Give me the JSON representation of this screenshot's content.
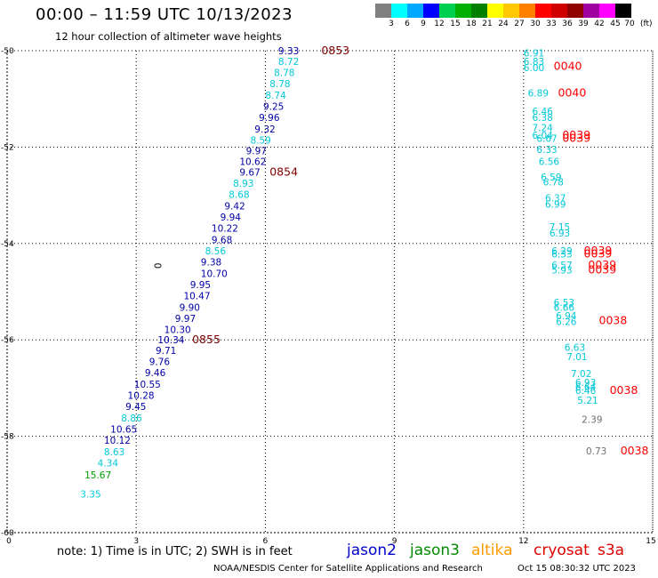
{
  "title": "00:00 – 11:59 UTC 10/13/2023",
  "subtitle": "12 hour collection of altimeter wave heights",
  "scale": {
    "unit": "(ft)",
    "labels": [
      "3",
      "6",
      "9",
      "12",
      "15",
      "18",
      "21",
      "24",
      "27",
      "30",
      "33",
      "36",
      "39",
      "42",
      "45",
      "70"
    ],
    "colors": [
      "#808080",
      "#00ffff",
      "#00a8ff",
      "#0000ff",
      "#00d050",
      "#00b000",
      "#008000",
      "#ffff00",
      "#ffc800",
      "#ff8000",
      "#ff0000",
      "#d00000",
      "#900000",
      "#a000a0",
      "#ff00ff",
      "#000000"
    ]
  },
  "note": "note: 1) Time is in UTC; 2) SWH is in feet",
  "satellites": [
    {
      "name": "jason2",
      "color": "#0000cc"
    },
    {
      "name": "jason3",
      "color": "#008c00"
    },
    {
      "name": "altika",
      "color": "#ff9900"
    },
    {
      "name": "cryosat",
      "color": "#dd0000"
    },
    {
      "name": "s3a",
      "color": "#dd0000"
    }
  ],
  "footer": "NOAA/NESDIS Center for Satellite Applications and Research",
  "footer_date": "Oct 15 08:30:32 UTC 2023",
  "chart_data": {
    "type": "scatter",
    "xlim": [
      0,
      15
    ],
    "ylim": [
      -60,
      -50
    ],
    "x_ticks": [
      "0",
      "3",
      "6",
      "9",
      "12",
      "15"
    ],
    "x_tick_values": [
      0,
      3,
      6,
      9,
      12,
      15
    ],
    "y_ticks": [
      "-50",
      "-52",
      "-54",
      "-56",
      "-58",
      "-60"
    ],
    "y_tick_values": [
      -50,
      -52,
      -54,
      -56,
      -58,
      -60
    ],
    "grid": true,
    "colors": {
      "gray": "#707070",
      "cyan": "#00c8d8",
      "blue": "#0000a8",
      "green": "#00a000",
      "red": "#ff0000",
      "darkred": "#800000",
      "black": "#000000"
    },
    "points": [
      {
        "x": 6.3,
        "y": -50.0,
        "label": "9.33",
        "color": "blue"
      },
      {
        "x": 7.3,
        "y": -50.0,
        "label": "0853",
        "color": "darkred"
      },
      {
        "x": 6.3,
        "y": -50.22,
        "label": "8.72",
        "color": "cyan"
      },
      {
        "x": 6.2,
        "y": -50.45,
        "label": "8.78",
        "color": "cyan"
      },
      {
        "x": 6.1,
        "y": -50.68,
        "label": "8.78",
        "color": "cyan"
      },
      {
        "x": 6.0,
        "y": -50.92,
        "label": "8.74",
        "color": "cyan"
      },
      {
        "x": 5.95,
        "y": -51.15,
        "label": "9.25",
        "color": "blue"
      },
      {
        "x": 5.85,
        "y": -51.38,
        "label": "9.96",
        "color": "blue"
      },
      {
        "x": 5.75,
        "y": -51.62,
        "label": "9.32",
        "color": "blue"
      },
      {
        "x": 5.65,
        "y": -51.85,
        "label": "8.59",
        "color": "cyan"
      },
      {
        "x": 5.55,
        "y": -52.08,
        "label": "9.97",
        "color": "blue"
      },
      {
        "x": 5.4,
        "y": -52.3,
        "label": "10.62",
        "color": "blue"
      },
      {
        "x": 5.4,
        "y": -52.52,
        "label": "9.67",
        "color": "blue"
      },
      {
        "x": 6.1,
        "y": -52.52,
        "label": "0854",
        "color": "darkred"
      },
      {
        "x": 5.25,
        "y": -52.75,
        "label": "8.93",
        "color": "cyan"
      },
      {
        "x": 5.15,
        "y": -52.98,
        "label": "8.68",
        "color": "cyan"
      },
      {
        "x": 5.05,
        "y": -53.22,
        "label": "9.42",
        "color": "blue"
      },
      {
        "x": 4.95,
        "y": -53.45,
        "label": "9.94",
        "color": "blue"
      },
      {
        "x": 4.75,
        "y": -53.68,
        "label": "10.22",
        "color": "blue"
      },
      {
        "x": 4.75,
        "y": -53.92,
        "label": "9.68",
        "color": "blue"
      },
      {
        "x": 4.6,
        "y": -54.15,
        "label": "8.56",
        "color": "cyan"
      },
      {
        "x": 3.5,
        "y": -54.4,
        "label": "0",
        "color": "black",
        "rotate": true
      },
      {
        "x": 4.5,
        "y": -54.38,
        "label": "9.38",
        "color": "blue"
      },
      {
        "x": 4.5,
        "y": -54.62,
        "label": "10.70",
        "color": "blue"
      },
      {
        "x": 4.25,
        "y": -54.85,
        "label": "9.95",
        "color": "blue"
      },
      {
        "x": 4.1,
        "y": -55.08,
        "label": "10.47",
        "color": "blue"
      },
      {
        "x": 4.0,
        "y": -55.32,
        "label": "9.90",
        "color": "blue"
      },
      {
        "x": 3.9,
        "y": -55.55,
        "label": "9.97",
        "color": "blue"
      },
      {
        "x": 3.65,
        "y": -55.78,
        "label": "10.30",
        "color": "blue"
      },
      {
        "x": 3.5,
        "y": -56.0,
        "label": "10.34",
        "color": "blue"
      },
      {
        "x": 4.3,
        "y": -56.0,
        "label": "0855",
        "color": "darkred"
      },
      {
        "x": 3.45,
        "y": -56.22,
        "label": "9.71",
        "color": "blue"
      },
      {
        "x": 3.3,
        "y": -56.45,
        "label": "9.76",
        "color": "blue"
      },
      {
        "x": 3.2,
        "y": -56.68,
        "label": "9.46",
        "color": "blue"
      },
      {
        "x": 2.95,
        "y": -56.92,
        "label": "10.55",
        "color": "blue"
      },
      {
        "x": 2.8,
        "y": -57.15,
        "label": "10.28",
        "color": "blue"
      },
      {
        "x": 2.75,
        "y": -57.38,
        "label": "9.45",
        "color": "blue"
      },
      {
        "x": 2.65,
        "y": -57.62,
        "label": "8.86",
        "color": "cyan"
      },
      {
        "x": 2.4,
        "y": -57.85,
        "label": "10.65",
        "color": "blue"
      },
      {
        "x": 2.25,
        "y": -58.08,
        "label": "10.12",
        "color": "blue"
      },
      {
        "x": 2.25,
        "y": -58.32,
        "label": "8.63",
        "color": "cyan"
      },
      {
        "x": 2.1,
        "y": -58.55,
        "label": "4.34",
        "color": "cyan"
      },
      {
        "x": 1.8,
        "y": -58.8,
        "label": "15.67",
        "color": "green"
      },
      {
        "x": 1.7,
        "y": -59.2,
        "label": "3.35",
        "color": "cyan"
      },
      {
        "x": 12.0,
        "y": -50.05,
        "label": "6.91",
        "color": "cyan"
      },
      {
        "x": 12.0,
        "y": -50.22,
        "label": "6.83",
        "color": "cyan"
      },
      {
        "x": 12.0,
        "y": -50.35,
        "label": "6.00",
        "color": "cyan"
      },
      {
        "x": 12.7,
        "y": -50.32,
        "label": "0040",
        "color": "red"
      },
      {
        "x": 12.1,
        "y": -50.88,
        "label": "6.89",
        "color": "cyan"
      },
      {
        "x": 12.8,
        "y": -50.88,
        "label": "0040",
        "color": "red"
      },
      {
        "x": 12.2,
        "y": -51.25,
        "label": "6.46",
        "color": "cyan"
      },
      {
        "x": 12.2,
        "y": -51.38,
        "label": "6.38",
        "color": "cyan"
      },
      {
        "x": 12.2,
        "y": -51.6,
        "label": "7.24",
        "color": "cyan"
      },
      {
        "x": 12.2,
        "y": -51.75,
        "label": "6.04",
        "color": "cyan"
      },
      {
        "x": 12.3,
        "y": -51.82,
        "label": "6.67",
        "color": "cyan"
      },
      {
        "x": 12.9,
        "y": -51.75,
        "label": "0039",
        "color": "red"
      },
      {
        "x": 12.9,
        "y": -51.82,
        "label": "0039",
        "color": "red"
      },
      {
        "x": 12.3,
        "y": -52.05,
        "label": "6.33",
        "color": "cyan"
      },
      {
        "x": 12.35,
        "y": -52.3,
        "label": "6.56",
        "color": "cyan"
      },
      {
        "x": 12.4,
        "y": -52.62,
        "label": "6.59",
        "color": "cyan"
      },
      {
        "x": 12.45,
        "y": -52.72,
        "label": "6.78",
        "color": "cyan"
      },
      {
        "x": 12.5,
        "y": -53.05,
        "label": "6.37",
        "color": "cyan"
      },
      {
        "x": 12.5,
        "y": -53.18,
        "label": "6.99",
        "color": "cyan"
      },
      {
        "x": 12.6,
        "y": -53.65,
        "label": "7.15",
        "color": "cyan"
      },
      {
        "x": 12.6,
        "y": -53.78,
        "label": "6.93",
        "color": "cyan"
      },
      {
        "x": 12.65,
        "y": -54.15,
        "label": "6.29",
        "color": "cyan"
      },
      {
        "x": 12.65,
        "y": -54.22,
        "label": "6.33",
        "color": "cyan"
      },
      {
        "x": 13.4,
        "y": -54.15,
        "label": "0039",
        "color": "red"
      },
      {
        "x": 13.4,
        "y": -54.22,
        "label": "0039",
        "color": "red"
      },
      {
        "x": 12.65,
        "y": -54.45,
        "label": "6.57",
        "color": "cyan"
      },
      {
        "x": 12.65,
        "y": -54.55,
        "label": "5.93",
        "color": "cyan"
      },
      {
        "x": 13.5,
        "y": -54.45,
        "label": "0039",
        "color": "red"
      },
      {
        "x": 13.5,
        "y": -54.55,
        "label": "0039",
        "color": "red"
      },
      {
        "x": 12.7,
        "y": -55.22,
        "label": "6.53",
        "color": "cyan"
      },
      {
        "x": 12.7,
        "y": -55.32,
        "label": "6.66",
        "color": "cyan"
      },
      {
        "x": 12.75,
        "y": -55.5,
        "label": "6.94",
        "color": "cyan"
      },
      {
        "x": 12.75,
        "y": -55.62,
        "label": "6.26",
        "color": "cyan"
      },
      {
        "x": 13.75,
        "y": -55.6,
        "label": "0038",
        "color": "red"
      },
      {
        "x": 12.95,
        "y": -56.15,
        "label": "6.63",
        "color": "cyan"
      },
      {
        "x": 13.0,
        "y": -56.35,
        "label": "7.01",
        "color": "cyan"
      },
      {
        "x": 13.1,
        "y": -56.7,
        "label": "7.02",
        "color": "cyan"
      },
      {
        "x": 13.2,
        "y": -56.88,
        "label": "6.93",
        "color": "cyan"
      },
      {
        "x": 13.2,
        "y": -56.97,
        "label": "6.64",
        "color": "cyan"
      },
      {
        "x": 13.2,
        "y": -57.05,
        "label": "6.46",
        "color": "cyan"
      },
      {
        "x": 13.25,
        "y": -57.25,
        "label": "5.21",
        "color": "cyan"
      },
      {
        "x": 14.0,
        "y": -57.05,
        "label": "0038",
        "color": "red"
      },
      {
        "x": 13.35,
        "y": -57.65,
        "label": "2.39",
        "color": "gray"
      },
      {
        "x": 13.45,
        "y": -58.3,
        "label": "0.73",
        "color": "gray"
      },
      {
        "x": 14.25,
        "y": -58.3,
        "label": "0038",
        "color": "red"
      }
    ]
  }
}
